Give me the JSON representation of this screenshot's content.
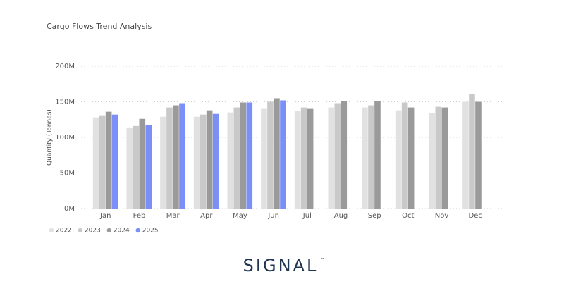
{
  "chart_data": {
    "type": "bar",
    "title": "Cargo Flows Trend Analysis",
    "y_label": "Quantity (Tonnes)",
    "categories": [
      "Jan",
      "Feb",
      "Mar",
      "Apr",
      "May",
      "Jun",
      "Jul",
      "Aug",
      "Sep",
      "Oct",
      "Nov",
      "Dec"
    ],
    "series": [
      {
        "name": "2022",
        "color": "#e1e1e1",
        "values": [
          128000000,
          114000000,
          129000000,
          129000000,
          135000000,
          140000000,
          137000000,
          142000000,
          142000000,
          138000000,
          134000000,
          150000000
        ]
      },
      {
        "name": "2023",
        "color": "#c9c9c9",
        "values": [
          131000000,
          116000000,
          142000000,
          132000000,
          142000000,
          150000000,
          142000000,
          148000000,
          145000000,
          149000000,
          143000000,
          161000000
        ]
      },
      {
        "name": "2024",
        "color": "#9a9a9a",
        "values": [
          136000000,
          126000000,
          145000000,
          138000000,
          149000000,
          155000000,
          140000000,
          151000000,
          151000000,
          142000000,
          142000000,
          150000000
        ]
      },
      {
        "name": "2025",
        "color": "#7b8ff7",
        "values": [
          132000000,
          117000000,
          148000000,
          133000000,
          149000000,
          152000000,
          null,
          null,
          null,
          null,
          null,
          null
        ]
      }
    ],
    "ylim": [
      0,
      200000000
    ],
    "yticks": [
      {
        "value": 0,
        "label": "0M"
      },
      {
        "value": 50000000,
        "label": "50M"
      },
      {
        "value": 100000000,
        "label": "100M"
      },
      {
        "value": 150000000,
        "label": "150M"
      },
      {
        "value": 200000000,
        "label": "200M"
      }
    ],
    "grid": true,
    "legend": "bottom-left"
  },
  "brand": {
    "name": "SIGNAL",
    "mark": "™"
  }
}
